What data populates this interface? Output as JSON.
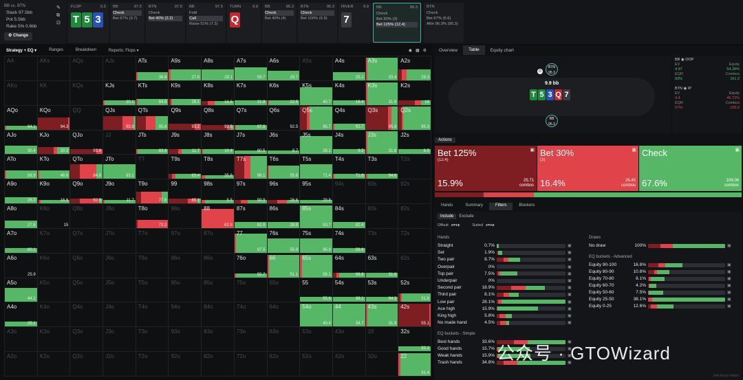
{
  "colors": {
    "bet_big": "#7f1e22",
    "bet_small": "#e04349",
    "check": "#56b866",
    "accent": "#4ab3a0"
  },
  "game_info": {
    "title": "BB vs. BTN",
    "stack": "Stack 97.5bb",
    "pot": "Pot 5.5bb",
    "rake": "Rake 5% 0.6bb",
    "change": "Change"
  },
  "flop": {
    "label": "FLOP",
    "size": "5.5",
    "cards": [
      "T",
      "5",
      "3"
    ]
  },
  "strip": [
    {
      "label": "BB",
      "size": "97.5",
      "actions": [
        "Check",
        "Bet 67%  (3.7)"
      ],
      "sel": 0
    },
    {
      "label": "BTN",
      "size": "97.5",
      "actions": [
        "Check",
        "Bet 40%  (2.2)"
      ],
      "sel": 1
    },
    {
      "label": "BB",
      "size": "97.5",
      "actions": [
        "Fold",
        "Call",
        "Raise 51%  (7.2)"
      ],
      "sel": 1
    },
    {
      "label": "TURN",
      "size": "9.9",
      "card": "Q"
    },
    {
      "label": "BB",
      "size": "95.3",
      "actions": [
        "Check",
        "Bet 40%  (4)"
      ],
      "sel": 0
    },
    {
      "label": "BTN",
      "size": "95.3",
      "actions": [
        "Check",
        "Bet 100%  (9.9)"
      ],
      "sel": 0
    },
    {
      "label": "RIVER",
      "size": "9.9",
      "card": "7"
    },
    {
      "label": "BB",
      "size": "95.3",
      "actions": [
        "Check",
        "Bet 30%  (3)",
        "Bet 125%  (12.4)"
      ],
      "sel": 2,
      "active": true
    },
    {
      "label": "BTN",
      "size": "",
      "actions": [
        "Check",
        "Bet 67%  (6.6)",
        "Allin 96.3%  (95.3)"
      ],
      "sel": -1
    }
  ],
  "left_tabs": [
    "Strategy + EQ",
    "Ranges",
    "Breakdown",
    "Reports: Flops"
  ],
  "right_tabs": [
    "Overview",
    "Table",
    "Equity chart"
  ],
  "table": {
    "pot": "9.9 bb",
    "board": [
      "T",
      "5",
      "3",
      "Q",
      "7"
    ],
    "top_seat": {
      "name": "BTN",
      "stack": "95.3"
    },
    "bottom_seat": {
      "name": "BB",
      "stack": "95.3"
    }
  },
  "player_info": [
    {
      "name": "BB",
      "tag": "OOP",
      "ev": "4.97",
      "equity": "54.28%",
      "eqr": "93%",
      "combos": "161.2"
    },
    {
      "name": "BTN",
      "tag": "IP",
      "ev": "4.4",
      "equity": "45.72%",
      "eqr": "97%",
      "combos": "105.6"
    }
  ],
  "actions_title": "Actions",
  "actions": [
    {
      "label": "Bet 125%",
      "sub": "(12.4)",
      "pct": "15.9%",
      "ev": "25.71",
      "combos_label": "combos",
      "combos": "25.7"
    },
    {
      "label": "Bet 30%",
      "sub": "(3)",
      "pct": "16.4%",
      "ev": "26.45",
      "combos_label": "combos",
      "combos": "26.45"
    },
    {
      "label": "Check",
      "sub": "",
      "pct": "67.6%",
      "ev": "109.06",
      "combos_label": "combos",
      "combos": "109.06"
    }
  ],
  "filter_tabs": [
    "Hands",
    "Summary",
    "Filters",
    "Blockers"
  ],
  "include_tabs": [
    "Include",
    "Exclude"
  ],
  "suit_labels": {
    "offsuit": "Offsuit",
    "suited": "Suited"
  },
  "hands_title": "Hands",
  "hands": [
    {
      "n": "Straight",
      "v": "0.7%",
      "f": [
        0.05,
        0,
        0.95
      ],
      "w": 0.03
    },
    {
      "n": "Set",
      "v": "1.9%",
      "f": [
        0.2,
        0.1,
        0.7
      ],
      "w": 0.08
    },
    {
      "n": "Two pair",
      "v": "8.7%",
      "f": [
        0.3,
        0.2,
        0.5
      ],
      "w": 0.34
    },
    {
      "n": "Overpair",
      "v": "0%",
      "f": [
        0,
        0,
        0
      ],
      "w": 0
    },
    {
      "n": "Top pair",
      "v": "7.5%",
      "f": [
        0.05,
        0.1,
        0.85
      ],
      "w": 0.3
    },
    {
      "n": "Underpair",
      "v": "0%",
      "f": [
        0,
        0,
        0
      ],
      "w": 0
    },
    {
      "n": "Second pair",
      "v": "18.9%",
      "f": [
        0.3,
        0.3,
        0.4
      ],
      "w": 0.7
    },
    {
      "n": "Third pair",
      "v": "8.1%",
      "f": [
        0.3,
        0.25,
        0.45
      ],
      "w": 0.32
    },
    {
      "n": "Low pair",
      "v": "28.1%",
      "f": [
        0.02,
        0.05,
        0.93
      ],
      "w": 1
    },
    {
      "n": "Ace high",
      "v": "15.9%",
      "f": [
        0,
        0.02,
        0.98
      ],
      "w": 0.6
    },
    {
      "n": "King high",
      "v": "5.8%",
      "f": [
        0.2,
        0.4,
        0.4
      ],
      "w": 0.22
    },
    {
      "n": "No made hand",
      "v": "4.5%",
      "f": [
        0.3,
        0.5,
        0.2
      ],
      "w": 0.18
    }
  ],
  "eq_simple_title": "EQ buckets - Simple",
  "eq_simple": [
    {
      "n": "Best hands",
      "v": "33.6%",
      "f": [
        0.25,
        0.2,
        0.55
      ],
      "w": 1
    },
    {
      "n": "Good hands",
      "v": "15.7%",
      "f": [
        0,
        0.05,
        0.95
      ],
      "w": 0.48
    },
    {
      "n": "Weak hands",
      "v": "15.9%",
      "f": [
        0,
        0.05,
        0.95
      ],
      "w": 0.49
    },
    {
      "n": "Trash hands",
      "v": "34.8%",
      "f": [
        0.1,
        0.2,
        0.7
      ],
      "w": 1
    }
  ],
  "draws_title": "Draws",
  "draws": [
    {
      "n": "No draw",
      "v": "100%",
      "f": [
        0.16,
        0.16,
        0.68
      ],
      "w": 1
    }
  ],
  "eq_adv_title": "EQ buckets - Advanced",
  "eq_adv": [
    {
      "n": "Equity 90-100",
      "v": "16.8%",
      "f": [
        0.3,
        0.2,
        0.5
      ],
      "w": 0.45
    },
    {
      "n": "Equity 80-90",
      "v": "10.8%",
      "f": [
        0.3,
        0.1,
        0.6
      ],
      "w": 0.28
    },
    {
      "n": "Equity 70-80",
      "v": "8.1%",
      "f": [
        0.05,
        0.1,
        0.85
      ],
      "w": 0.21
    },
    {
      "n": "Equity 60-70",
      "v": "4.2%",
      "f": [
        0.05,
        0.1,
        0.85
      ],
      "w": 0.11
    },
    {
      "n": "Equity 50-60",
      "v": "7.5%",
      "f": [
        0,
        0.05,
        0.95
      ],
      "w": 0.2
    },
    {
      "n": "Equity 25-50",
      "v": "38.1%",
      "f": [
        0,
        0.05,
        0.95
      ],
      "w": 1
    },
    {
      "n": "Equity 0-25",
      "v": "12.6%",
      "f": [
        0.1,
        0.25,
        0.65
      ],
      "w": 0.33
    }
  ],
  "footer": "Unit focus matrix",
  "watermark": "公众号 · GTOWizard",
  "ranks": [
    "A",
    "K",
    "Q",
    "J",
    "T",
    "9",
    "8",
    "7",
    "6",
    "5",
    "4",
    "3",
    "2"
  ],
  "matrix": {
    "AA": {
      "d": 1
    },
    "AKs": {
      "d": 1
    },
    "AQs": {
      "d": 1
    },
    "AJs": {
      "d": 1
    },
    "ATs": {
      "v": "36.8",
      "h": 0.35,
      "f": [
        0,
        0.05,
        0.95
      ]
    },
    "A9s": {
      "v": "27.6",
      "h": 0.45,
      "f": [
        0,
        0.05,
        0.95
      ]
    },
    "A8s": {
      "v": "29.1",
      "h": 0.45,
      "f": [
        0,
        0,
        1
      ]
    },
    "A7s": {
      "v": "59.7",
      "h": 0.55,
      "f": [
        0,
        0,
        1
      ]
    },
    "A6s": {
      "v": "29.7",
      "h": 0.4,
      "f": [
        0,
        0,
        1
      ]
    },
    "A5s": {
      "d": 1
    },
    "A4s": {
      "v": "25.1",
      "h": 0.35,
      "f": [
        0,
        0,
        1
      ]
    },
    "A3s": {
      "v": "33.4",
      "h": 0.95,
      "f": [
        0,
        0.05,
        0.95
      ]
    },
    "A2s": {
      "v": "29.3",
      "h": 0.45,
      "f": [
        0.1,
        0.15,
        0.75
      ]
    },
    "AKo": {
      "d": 1
    },
    "KK": {
      "d": 1
    },
    "KQs": {
      "d": 1
    },
    "KJs": {
      "v": "20.1",
      "h": 0.2,
      "f": [
        0,
        0.05,
        0.95
      ]
    },
    "KTs": {
      "v": "84.6",
      "h": 0.25,
      "f": [
        0,
        0.05,
        0.95
      ]
    },
    "K9s": {
      "v": "28.1",
      "h": 0.25,
      "f": [
        0.05,
        0.05,
        0.9
      ]
    },
    "K8s": {
      "v": "16.8",
      "h": 0.15,
      "f": [
        0.2,
        0.2,
        0.6
      ]
    },
    "K7s": {
      "v": "21.8",
      "h": 0.2,
      "f": [
        0,
        0,
        1
      ]
    },
    "K6s": {
      "v": "22.5",
      "h": 0.2,
      "f": [
        0,
        0.05,
        0.95
      ]
    },
    "K5s": {
      "v": "40.7",
      "h": 0.75,
      "f": [
        0,
        0,
        1
      ]
    },
    "K4s": {
      "v": "16.4",
      "h": 0.2,
      "f": [
        0,
        0,
        1
      ]
    },
    "K3s": {
      "v": "31.9",
      "h": 0.95,
      "f": [
        0,
        0.05,
        0.95
      ]
    },
    "K2s": {
      "v": "16",
      "h": 0.2,
      "f": [
        0.5,
        0.2,
        0.3
      ]
    },
    "AQo": {
      "v": "94.1",
      "h": 0.15,
      "f": [
        0,
        0.05,
        0.95
      ]
    },
    "KQo": {
      "v": "94.3",
      "h": 0.5,
      "f": [
        0.95,
        0.05,
        0
      ]
    },
    "QQ": {
      "d": 1
    },
    "QJs": {
      "v": "93.9",
      "h": 0.55,
      "f": [
        0.6,
        0.35,
        0.05
      ]
    },
    "QTs": {
      "v": "95.6",
      "h": 0.55,
      "f": [
        0.3,
        0.3,
        0.4
      ]
    },
    "Q9s": {
      "v": "93.2",
      "h": 0.25,
      "f": [
        0.8,
        0.2,
        0
      ]
    },
    "Q8s": {
      "v": "92.5",
      "h": 0.2,
      "f": [
        0.8,
        0.1,
        0.1
      ]
    },
    "Q7s": {
      "v": "97.5",
      "h": 0.2,
      "f": [
        0,
        0.05,
        0.95
      ]
    },
    "Q6s": {
      "v": "92.5",
      "h": 0.0,
      "f": [
        0,
        0,
        1
      ]
    },
    "Q5s": {
      "v": "95.7",
      "h": 0.95,
      "f": [
        0.2,
        0.1,
        0.7
      ]
    },
    "Q4s": {
      "v": "92.7",
      "h": 0.25,
      "f": [
        0,
        0.05,
        0.95
      ]
    },
    "Q3s": {
      "v": "95.9",
      "h": 0.95,
      "f": [
        0.7,
        0.1,
        0.2
      ]
    },
    "Q2s": {
      "v": "95.3",
      "h": 0.95,
      "f": [
        0.1,
        0.05,
        0.85
      ]
    },
    "AJo": {
      "v": "30.4",
      "h": 0.35,
      "f": [
        0,
        0,
        1
      ]
    },
    "KJo": {
      "v": "20.3",
      "h": 0.3,
      "f": [
        0.5,
        0.1,
        0.4
      ]
    },
    "QJo": {
      "v": "93.9",
      "h": 0.2,
      "f": [
        0.8,
        0.2,
        0
      ]
    },
    "JJ": {
      "d": 1
    },
    "JTs": {
      "v": "83.6",
      "h": 0.2,
      "f": [
        0,
        0.05,
        0.95
      ]
    },
    "J9s": {
      "v": "11.7",
      "h": 0.2,
      "f": [
        0.3,
        0.1,
        0.6
      ]
    },
    "J8s": {
      "v": "10.4",
      "h": 0.2,
      "f": [
        0,
        0.05,
        0.95
      ]
    },
    "J7s": {
      "v": "60.5",
      "h": 0.15,
      "f": [
        0,
        0,
        1
      ]
    },
    "J6s": {
      "v": "8.7",
      "h": 0.15,
      "f": [
        0,
        0,
        1
      ]
    },
    "J5s": {
      "v": "28.1",
      "h": 0.75,
      "f": [
        0,
        0,
        1
      ]
    },
    "J4s": {
      "v": "9.5",
      "h": 0.2,
      "f": [
        0,
        0,
        1
      ]
    },
    "J3s": {
      "v": "31.8",
      "h": 0.95,
      "f": [
        0,
        0.05,
        0.95
      ]
    },
    "J2s": {
      "v": "8.5",
      "h": 0.2,
      "f": [
        0,
        0,
        1
      ]
    },
    "ATo": {
      "v": "56.9",
      "h": 0.35,
      "f": [
        0,
        0.05,
        0.95
      ]
    },
    "KTo": {
      "v": "46.6",
      "h": 0.35,
      "f": [
        0,
        0.05,
        0.95
      ]
    },
    "QTo": {
      "v": "84.6",
      "h": 0.6,
      "f": [
        0.3,
        0.5,
        0.2
      ]
    },
    "JTo": {
      "v": "83.1",
      "h": 0.6,
      "f": [
        0,
        0,
        1
      ]
    },
    "TT": {
      "d": 1
    },
    "T9s": {
      "v": "83.4",
      "h": 0.2,
      "f": [
        0.1,
        0.1,
        0.8
      ]
    },
    "T8s": {
      "v": "35.8",
      "h": 0.15,
      "f": [
        0,
        0.1,
        0.9
      ]
    },
    "T7s": {
      "v": "96.1",
      "h": 0.95,
      "f": [
        0.3,
        0.2,
        0.5
      ]
    },
    "T6s": {
      "v": "55.6",
      "h": 0.55,
      "f": [
        0,
        0.05,
        0.95
      ]
    },
    "T5s": {
      "v": "71.4",
      "h": 0.6,
      "f": [
        0,
        0,
        1
      ]
    },
    "T4s": {
      "v": "71.6",
      "h": 0.2,
      "f": [
        0,
        0.05,
        0.95
      ]
    },
    "T3s": {
      "v": "94.6",
      "h": 0.2,
      "f": [
        0,
        0.05,
        0.95
      ]
    },
    "T2s": {
      "d": 1
    },
    "A9o": {
      "v": "26.3",
      "h": 0.25,
      "f": [
        0,
        0,
        1
      ]
    },
    "K9o": {
      "v": "16.6",
      "h": 0.15,
      "f": [
        0.05,
        0.05,
        0.9
      ]
    },
    "Q9o": {
      "v": "92.9",
      "h": 0.2,
      "f": [
        0.3,
        0.6,
        0.1
      ]
    },
    "J9o": {
      "v": "11.7",
      "h": 0.15,
      "f": [
        0,
        0.05,
        0.95
      ]
    },
    "T9o": {
      "v": "77.6",
      "h": 0.5,
      "f": [
        0.15,
        0.65,
        0.2
      ]
    },
    "99": {
      "v": "65.1",
      "h": 0.2,
      "f": [
        0.6,
        0.3,
        0.1
      ]
    },
    "98s": {
      "v": "5.5",
      "h": 0.15,
      "f": [
        0,
        0.1,
        0.9
      ]
    },
    "97s": {
      "v": "59.9",
      "h": 0.15,
      "f": [
        0.2,
        0.2,
        0.6
      ]
    },
    "96s": {
      "v": "26.6",
      "h": 0.15,
      "f": [
        0.3,
        0.3,
        0.4
      ]
    },
    "95s": {
      "v": "29.8",
      "h": 0.15,
      "f": [
        0,
        0,
        1
      ]
    },
    "94s": {
      "d": 1
    },
    "93s": {
      "d": 1
    },
    "92s": {
      "d": 1
    },
    "A8o": {
      "v": "27.8",
      "h": 0.3,
      "f": [
        0,
        0,
        1
      ]
    },
    "K8o": {
      "d": 1,
      "v": "15",
      "h": 0.0,
      "f": [
        0,
        0,
        1
      ]
    },
    "Q8o": {
      "d": 1
    },
    "J8o": {
      "d": 1
    },
    "T8o": {
      "v": "73.2",
      "h": 0.35,
      "f": [
        0.05,
        0.95,
        0
      ]
    },
    "88": {
      "v": "62.8",
      "h": 0.8,
      "f": [
        0,
        1,
        0
      ]
    },
    "87s": {
      "v": "82.9",
      "h": 0.25,
      "f": [
        0,
        0,
        1
      ]
    },
    "86s": {
      "v": "28.8",
      "h": 0.25,
      "f": [
        0,
        0,
        1
      ]
    },
    "85s": {
      "v": "53.7",
      "h": 0.95,
      "f": [
        0,
        0,
        1
      ]
    },
    "84s": {
      "v": "82.4",
      "h": 0.25,
      "f": [
        0,
        0,
        1
      ]
    },
    "83s": {
      "d": 1
    },
    "82s": {
      "d": 1
    },
    "A7o": {
      "v": "60.1",
      "h": 0.2,
      "f": [
        0,
        0,
        1
      ]
    },
    "K7o": {
      "d": 1
    },
    "Q7o": {
      "d": 1
    },
    "J7o": {
      "d": 1
    },
    "T7o": {
      "d": 1
    },
    "97o": {
      "d": 1
    },
    "87o": {
      "d": 1
    },
    "77": {
      "v": "97.5",
      "h": 0.8,
      "f": [
        0,
        0.05,
        0.95
      ]
    },
    "76s": {
      "v": "55.9",
      "h": 0.6,
      "f": [
        0,
        0,
        1
      ]
    },
    "75s": {
      "v": "95.9",
      "h": 0.6,
      "f": [
        0,
        0,
        1
      ]
    },
    "74s": {
      "v": "56.6",
      "h": 0.2,
      "f": [
        0,
        0,
        1
      ]
    },
    "73s": {
      "d": 1
    },
    "72s": {
      "d": 1
    },
    "A6o": {
      "v": "25.9",
      "h": 0.0,
      "f": [
        0,
        0,
        1
      ]
    },
    "K6o": {
      "d": 1
    },
    "Q6o": {
      "d": 1
    },
    "J6o": {
      "d": 1
    },
    "T6o": {
      "d": 1
    },
    "96o": {
      "d": 1
    },
    "86o": {
      "d": 1
    },
    "76o": {
      "v": "55.7",
      "h": 0.15,
      "f": [
        0,
        0.05,
        0.95
      ]
    },
    "66": {
      "v": "51.1",
      "h": 0.95,
      "f": [
        0,
        0.05,
        0.95
      ]
    },
    "65s": {
      "v": "58.1",
      "h": 0.95,
      "f": [
        0,
        0.05,
        0.95
      ]
    },
    "64s": {
      "v": "98.8",
      "h": 0.2,
      "f": [
        0.1,
        0.1,
        0.8
      ]
    },
    "63s": {
      "v": "31.6",
      "h": 0.2,
      "f": [
        0,
        0,
        1
      ]
    },
    "62s": {
      "d": 1
    },
    "A5o": {
      "v": "44.1",
      "h": 0.6,
      "f": [
        0,
        0,
        1
      ]
    },
    "K5o": {
      "d": 1
    },
    "Q5o": {
      "d": 1
    },
    "J5o": {
      "d": 1
    },
    "T5o": {
      "d": 1
    },
    "95o": {
      "d": 1
    },
    "85o": {
      "d": 1
    },
    "75o": {
      "d": 1
    },
    "65o": {
      "d": 1
    },
    "55": {
      "v": "55.6",
      "h": 0.2,
      "f": [
        0,
        0,
        1
      ]
    },
    "54s": {
      "v": "38.1",
      "h": 0.2,
      "f": [
        0,
        0,
        1
      ]
    },
    "53s": {
      "v": "94.3",
      "h": 0.2,
      "f": [
        0,
        0,
        1
      ]
    },
    "52s": {
      "v": "31.8",
      "h": 0.35,
      "f": [
        0.05,
        0.05,
        0.9
      ]
    },
    "A4o": {
      "v": "25.1",
      "h": 0.2,
      "f": [
        0,
        0,
        1
      ]
    },
    "K4o": {
      "d": 1
    },
    "Q4o": {
      "d": 1
    },
    "J4o": {
      "d": 1
    },
    "T4o": {
      "d": 1
    },
    "94o": {
      "d": 1
    },
    "84o": {
      "d": 1
    },
    "74o": {
      "d": 1
    },
    "64o": {
      "d": 1
    },
    "54o": {
      "v": "40.4",
      "h": 0.95,
      "f": [
        0,
        0,
        1
      ]
    },
    "44": {
      "v": "34.7",
      "h": 0.95,
      "f": [
        0,
        0,
        1
      ]
    },
    "43s": {
      "v": "31.9",
      "h": 0.95,
      "f": [
        0,
        0.05,
        0.95
      ]
    },
    "42s": {
      "v": "55.1",
      "h": 0.95,
      "f": [
        0.95,
        0.05,
        0
      ]
    },
    "A3o": {
      "d": 1
    },
    "K3o": {
      "d": 1
    },
    "Q3o": {
      "d": 1
    },
    "J3o": {
      "d": 1
    },
    "T3o": {
      "d": 1
    },
    "93o": {
      "d": 1
    },
    "83o": {
      "d": 1
    },
    "73o": {
      "d": 1
    },
    "63o": {
      "d": 1
    },
    "53o": {
      "d": 1
    },
    "43o": {
      "d": 1
    },
    "33": {
      "d": 1
    },
    "32s": {
      "v": "32.1",
      "h": 0.2,
      "f": [
        0,
        0,
        1
      ]
    },
    "A2o": {
      "d": 1
    },
    "K2o": {
      "d": 1
    },
    "Q2o": {
      "d": 1
    },
    "J2o": {
      "d": 1
    },
    "T2o": {
      "d": 1
    },
    "92o": {
      "d": 1
    },
    "82o": {
      "d": 1
    },
    "72o": {
      "d": 1
    },
    "62o": {
      "d": 1
    },
    "52o": {
      "d": 1
    },
    "42o": {
      "d": 1
    },
    "32o": {
      "d": 1
    },
    "22": {
      "v": "31.4",
      "h": 0.95,
      "f": [
        0,
        0.05,
        0.95
      ]
    }
  }
}
